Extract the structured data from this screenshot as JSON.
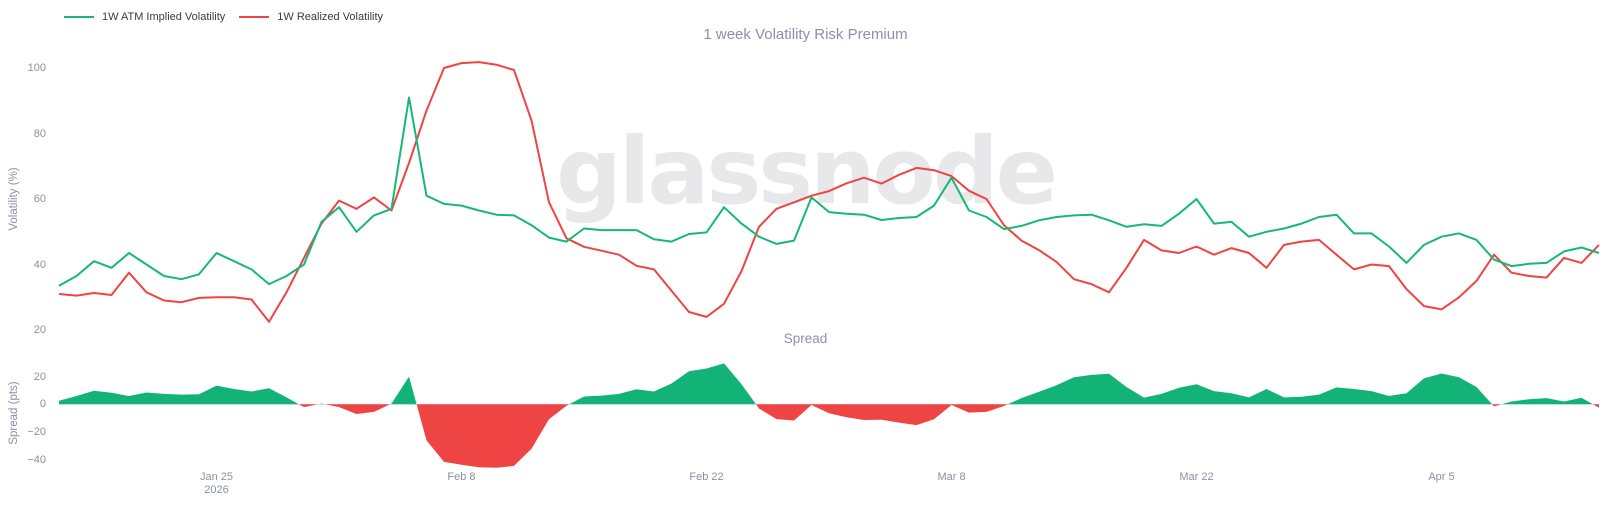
{
  "title": "1 week Volatility Risk Premium",
  "subtitle": "Spread",
  "watermark": "glassnode",
  "colors": {
    "implied_green": "#17b877",
    "realized_red": "#f04343",
    "spread_positive": "#13b377",
    "spread_negative": "#ef4444",
    "muted_text": "#8b90a4",
    "title_text": "#8b92a8",
    "legend_text": "#3b3b3d",
    "watermark_text": "#e8e8ea",
    "zero_line": "#e9e9ec"
  },
  "legend": [
    {
      "label": "1W ATM Implied Volatility",
      "color": "#17b877"
    },
    {
      "label": "1W Realized Volatility",
      "color": "#f04343"
    }
  ],
  "main_axis": {
    "label": "Volatility (%)",
    "ticks": [
      20,
      40,
      60,
      80,
      100
    ]
  },
  "spread_axis": {
    "label": "Spread (pts)",
    "ticks": [
      -40,
      -20,
      0,
      20
    ]
  },
  "x_axis": {
    "ticks": [
      {
        "label": "Jan 25",
        "sub": "2026",
        "index": 9
      },
      {
        "label": "Feb 8",
        "sub": "",
        "index": 23
      },
      {
        "label": "Feb 22",
        "sub": "",
        "index": 37
      },
      {
        "label": "Mar 8",
        "sub": "",
        "index": 51
      },
      {
        "label": "Mar 22",
        "sub": "",
        "index": 65
      },
      {
        "label": "Apr 5",
        "sub": "",
        "index": 79
      }
    ]
  },
  "chart_data": [
    {
      "type": "line",
      "title": "1 week Volatility Risk Premium",
      "ylabel": "Volatility (%)",
      "ylim": [
        20,
        105
      ],
      "grid": false,
      "legend_position": "top-left",
      "x": [
        "Jan 16",
        "Jan 17",
        "Jan 18",
        "Jan 19",
        "Jan 20",
        "Jan 21",
        "Jan 22",
        "Jan 23",
        "Jan 24",
        "Jan 25",
        "Jan 26",
        "Jan 27",
        "Jan 28",
        "Jan 29",
        "Jan 30",
        "Jan 31",
        "Feb 1",
        "Feb 2",
        "Feb 3",
        "Feb 4",
        "Feb 5",
        "Feb 6",
        "Feb 7",
        "Feb 8",
        "Feb 9",
        "Feb 10",
        "Feb 11",
        "Feb 12",
        "Feb 13",
        "Feb 14",
        "Feb 15",
        "Feb 16",
        "Feb 17",
        "Feb 18",
        "Feb 19",
        "Feb 20",
        "Feb 21",
        "Feb 22",
        "Feb 23",
        "Feb 24",
        "Feb 25",
        "Feb 26",
        "Feb 27",
        "Feb 28",
        "Mar 1",
        "Mar 2",
        "Mar 3",
        "Mar 4",
        "Mar 5",
        "Mar 6",
        "Mar 7",
        "Mar 8",
        "Mar 9",
        "Mar 10",
        "Mar 11",
        "Mar 12",
        "Mar 13",
        "Mar 14",
        "Mar 15",
        "Mar 16",
        "Mar 17",
        "Mar 18",
        "Mar 19",
        "Mar 20",
        "Mar 21",
        "Mar 22",
        "Mar 23",
        "Mar 24",
        "Mar 25",
        "Mar 26",
        "Mar 27",
        "Mar 28",
        "Mar 29",
        "Mar 30",
        "Mar 31",
        "Apr 1",
        "Apr 2",
        "Apr 3",
        "Apr 4",
        "Apr 5",
        "Apr 6",
        "Apr 7",
        "Apr 8",
        "Apr 9",
        "Apr 10",
        "Apr 11",
        "Apr 12",
        "Apr 13",
        "Apr 14"
      ],
      "series": [
        {
          "name": "1W ATM Implied Volatility",
          "color": "#17b877",
          "values": [
            33.5,
            36.5,
            41,
            39,
            43.5,
            40,
            36.5,
            35.5,
            37,
            43.5,
            41,
            38.5,
            34,
            36.5,
            40,
            53,
            57.5,
            50,
            55,
            57,
            91,
            61,
            58.5,
            58,
            56.5,
            55.2,
            55,
            52,
            48.2,
            47,
            51,
            50.5,
            50.5,
            50.5,
            47.7,
            47,
            49.3,
            49.8,
            57.5,
            52.5,
            48.5,
            46.3,
            47.3,
            60.5,
            56,
            55.5,
            55.2,
            53.6,
            54.2,
            54.5,
            58,
            66.5,
            56.5,
            54.5,
            50.8,
            51.8,
            53.5,
            54.5,
            55,
            55.2,
            53.5,
            51.5,
            52.3,
            51.8,
            55.5,
            60,
            52.5,
            53,
            48.5,
            50,
            51,
            52.5,
            54.5,
            55.2,
            49.5,
            49.5,
            45.5,
            40.5,
            46,
            48.5,
            49.5,
            47.5,
            41.5,
            39.5,
            40.2,
            40.5,
            44,
            45.2,
            43.5
          ]
        },
        {
          "name": "1W Realized Volatility",
          "color": "#f04343",
          "values": [
            31,
            30.5,
            31.3,
            30.7,
            37.5,
            31.5,
            29,
            28.5,
            29.8,
            30,
            30,
            29.3,
            22.5,
            31.5,
            42,
            52.5,
            59.5,
            57,
            60.5,
            56.5,
            71,
            87,
            100,
            101.5,
            101.8,
            101,
            99.4,
            84,
            59,
            48,
            45.4,
            44.2,
            43,
            39.6,
            38.5,
            32,
            25.5,
            24,
            28,
            38,
            51.5,
            57,
            59,
            61,
            62.4,
            64.8,
            66.5,
            64.7,
            67.4,
            69.5,
            68.8,
            67,
            62.5,
            60,
            52,
            47.3,
            44.4,
            40.8,
            35.5,
            34,
            31.5,
            39,
            47.5,
            44.3,
            43.5,
            45.5,
            43,
            45,
            43.5,
            39,
            46,
            47,
            47.5,
            43,
            38.5,
            40,
            39.5,
            32.5,
            27.3,
            26.3,
            30,
            35,
            43,
            37.5,
            36.5,
            36,
            42,
            40.5,
            46
          ]
        }
      ]
    },
    {
      "type": "area",
      "title": "Spread",
      "ylabel": "Spread (pts)",
      "ylim": [
        -48,
        30
      ],
      "grid": false,
      "derived": "implied_minus_realized",
      "positive_color": "#13b377",
      "negative_color": "#ef4444"
    }
  ]
}
